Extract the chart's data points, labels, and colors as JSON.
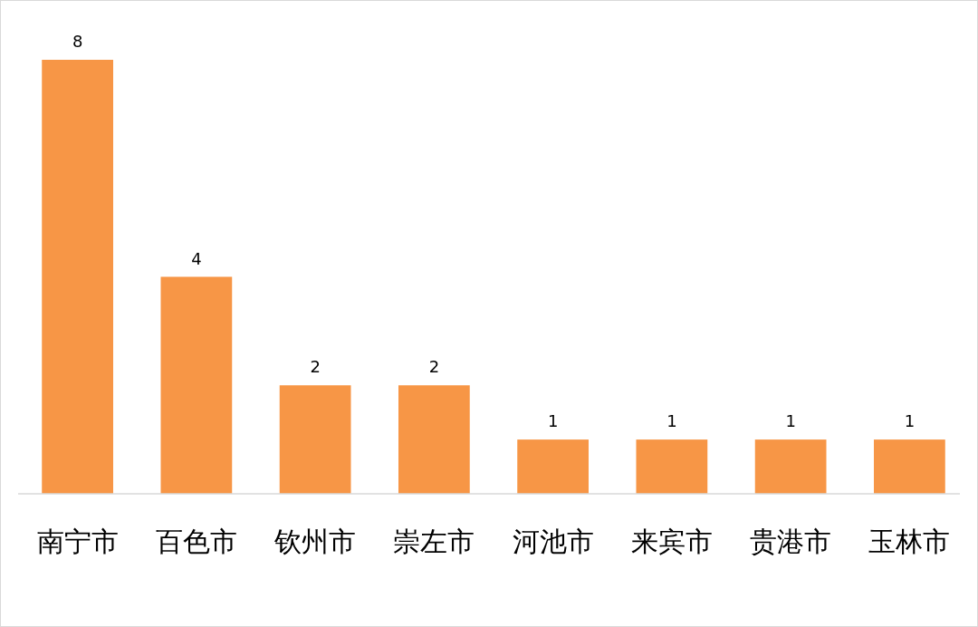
{
  "chart_data": {
    "type": "bar",
    "categories": [
      "南宁市",
      "百色市",
      "钦州市",
      "崇左市",
      "河池市",
      "来宾市",
      "贵港市",
      "玉林市"
    ],
    "values": [
      8,
      4,
      2,
      2,
      1,
      1,
      1,
      1
    ],
    "color": "#f79646",
    "data_labels": true
  }
}
